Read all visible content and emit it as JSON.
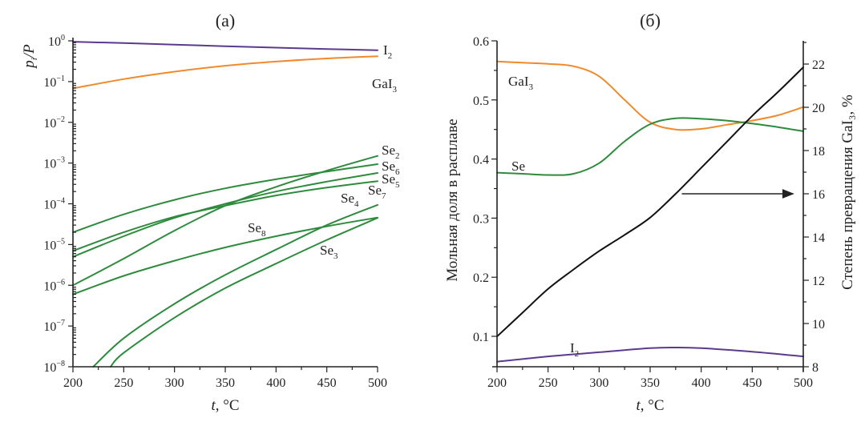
{
  "chart_data": [
    {
      "panel": "a",
      "type": "line",
      "title": "(a)",
      "xlabel_italic": "t",
      "xlabel_rest": ", °C",
      "ylabel_p": "p",
      "ylabel_sub": "i",
      "ylabel_rest": "/P",
      "yscale": "log",
      "xlim": [
        200,
        500
      ],
      "ylim": [
        1e-08,
        1
      ],
      "x_ticks": [
        200,
        250,
        300,
        350,
        400,
        450,
        500
      ],
      "y_tick_labels": [
        {
          "exp": 0,
          "base": "10",
          "power": "0"
        },
        {
          "exp": -1,
          "base": "10",
          "power": "−1"
        },
        {
          "exp": -2,
          "base": "10",
          "power": "−2"
        },
        {
          "exp": -3,
          "base": "10",
          "power": "−3"
        },
        {
          "exp": -4,
          "base": "10",
          "power": "−4"
        },
        {
          "exp": -5,
          "base": "10",
          "power": "−5"
        },
        {
          "exp": -6,
          "base": "10",
          "power": "−6"
        },
        {
          "exp": -7,
          "base": "10",
          "power": "−7"
        },
        {
          "exp": -8,
          "base": "10",
          "power": "−8"
        }
      ],
      "series": [
        {
          "name": "I2",
          "label_main": "I",
          "label_sub": "2",
          "color": "#5b3a8e",
          "x": [
            200,
            250,
            300,
            350,
            400,
            450,
            500
          ],
          "y": [
            0.95,
            0.88,
            0.81,
            0.74,
            0.68,
            0.63,
            0.59
          ]
        },
        {
          "name": "GaI3",
          "label_main": "GaI",
          "label_sub": "3",
          "color": "#f08a2c",
          "x": [
            200,
            250,
            300,
            350,
            400,
            450,
            500
          ],
          "y": [
            0.068,
            0.115,
            0.175,
            0.245,
            0.31,
            0.37,
            0.42
          ]
        },
        {
          "name": "Se2",
          "label_main": "Se",
          "label_sub": "2",
          "color": "#2e8b3e",
          "x": [
            200,
            250,
            300,
            350,
            400,
            450,
            500
          ],
          "y": [
            1e-06,
            4.5e-06,
            2.2e-05,
            9e-05,
            0.00026,
            0.00065,
            0.0015
          ]
        },
        {
          "name": "Se6",
          "label_main": "Se",
          "label_sub": "6",
          "color": "#2e8b3e",
          "x": [
            200,
            250,
            300,
            350,
            400,
            450,
            500
          ],
          "y": [
            2e-05,
            5.5e-05,
            0.000125,
            0.00024,
            0.0004,
            0.00062,
            0.00094
          ]
        },
        {
          "name": "Se5",
          "label_main": "Se",
          "label_sub": "5",
          "color": "#2e8b3e",
          "x": [
            200,
            250,
            300,
            350,
            400,
            450,
            500
          ],
          "y": [
            5e-06,
            1.6e-05,
            4.5e-05,
            0.0001,
            0.0002,
            0.00035,
            0.00057
          ]
        },
        {
          "name": "Se7",
          "label_main": "Se",
          "label_sub": "7",
          "color": "#2e8b3e",
          "x": [
            200,
            250,
            300,
            350,
            400,
            450,
            500
          ],
          "y": [
            7e-06,
            2e-05,
            4.8e-05,
            9e-05,
            0.00016,
            0.00025,
            0.00036
          ]
        },
        {
          "name": "Se4",
          "label_main": "Se",
          "label_sub": "4",
          "color": "#2e8b3e",
          "x": [
            220,
            250,
            300,
            350,
            400,
            450,
            500
          ],
          "y": [
            1e-08,
            5e-08,
            3.5e-07,
            1.8e-06,
            7.5e-06,
            3e-05,
            9.4e-05
          ]
        },
        {
          "name": "Se8",
          "label_main": "Se",
          "label_sub": "8",
          "color": "#2e8b3e",
          "x": [
            200,
            250,
            300,
            350,
            400,
            450,
            500
          ],
          "y": [
            6e-07,
            1.7e-06,
            4e-06,
            8.5e-06,
            1.6e-05,
            2.8e-05,
            4.6e-05
          ]
        },
        {
          "name": "Se3",
          "label_main": "Se",
          "label_sub": "3",
          "color": "#2e8b3e",
          "x": [
            237,
            250,
            300,
            350,
            400,
            450,
            500
          ],
          "y": [
            1e-08,
            2.2e-08,
            1.6e-07,
            8.5e-07,
            3.4e-06,
            1.3e-05,
            4.5e-05
          ]
        }
      ]
    },
    {
      "panel": "b",
      "type": "line",
      "title": "(б)",
      "xlabel_italic": "t",
      "xlabel_rest": ", °C",
      "ylabel": "Мольная доля в расплаве",
      "ylabel_right": "Степень превращения GaI₃, %",
      "xlim": [
        200,
        500
      ],
      "ylim": [
        0.05,
        0.6
      ],
      "ylim_right": [
        8,
        23
      ],
      "x_ticks": [
        200,
        250,
        300,
        350,
        400,
        450,
        500
      ],
      "y_ticks": [
        0.1,
        0.2,
        0.3,
        0.4,
        0.5,
        0.6
      ],
      "y_tick_labels": [
        "0.1",
        "0.2",
        "0.3",
        "0.4",
        "0.5",
        "0.6"
      ],
      "y_ticks_right": [
        8,
        10,
        12,
        14,
        16,
        18,
        20,
        22
      ],
      "series": [
        {
          "name": "GaI3",
          "label_main": "GaI",
          "label_sub": "3",
          "color": "#f08a2c",
          "axis": "left",
          "x": [
            200,
            225,
            250,
            275,
            300,
            325,
            350,
            375,
            400,
            425,
            450,
            475,
            500
          ],
          "y": [
            0.565,
            0.563,
            0.561,
            0.557,
            0.54,
            0.5,
            0.462,
            0.45,
            0.451,
            0.458,
            0.465,
            0.474,
            0.488
          ]
        },
        {
          "name": "Se",
          "label_main": "Se",
          "label_sub": "",
          "color": "#2e8b3e",
          "axis": "left",
          "x": [
            200,
            225,
            250,
            275,
            300,
            325,
            350,
            375,
            400,
            425,
            450,
            475,
            500
          ],
          "y": [
            0.377,
            0.375,
            0.373,
            0.375,
            0.393,
            0.43,
            0.459,
            0.469,
            0.468,
            0.465,
            0.46,
            0.454,
            0.447
          ]
        },
        {
          "name": "I2",
          "label_main": "I",
          "label_sub": "2",
          "color": "#5b3a8e",
          "axis": "left",
          "x": [
            200,
            250,
            300,
            350,
            375,
            400,
            450,
            500
          ],
          "y": [
            0.057,
            0.066,
            0.073,
            0.08,
            0.081,
            0.08,
            0.074,
            0.066
          ]
        },
        {
          "name": "Conversion GaI3",
          "color": "#111111",
          "axis": "right",
          "x": [
            200,
            225,
            250,
            275,
            300,
            325,
            350,
            375,
            400,
            425,
            450,
            475,
            500
          ],
          "y": [
            9.4,
            10.5,
            11.6,
            12.5,
            13.35,
            14.1,
            14.9,
            16.0,
            17.2,
            18.4,
            19.6,
            20.7,
            21.85
          ]
        }
      ],
      "annotations": [
        {
          "type": "arrow",
          "from": [
            381,
            16
          ],
          "to": [
            490,
            16
          ],
          "meaning": "black curve refers to right axis"
        }
      ]
    }
  ]
}
